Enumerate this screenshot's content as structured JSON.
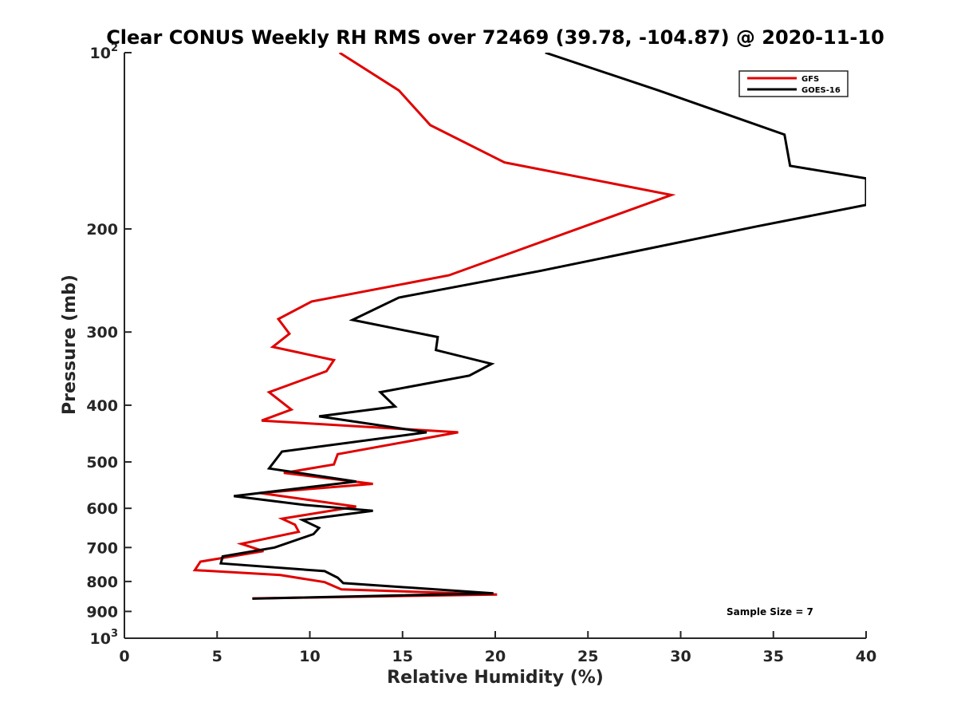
{
  "chart_data": {
    "type": "line",
    "title": "Clear CONUS Weekly RH RMS over 72469 (39.78, -104.87) @ 2020-11-10",
    "xlabel": "Relative Humidity (%)",
    "ylabel": "Pressure (mb)",
    "xlim": [
      0,
      40
    ],
    "ylim": [
      100,
      1000
    ],
    "yscale": "log",
    "y_reversed": true,
    "grid": false,
    "legend_position": "top-right",
    "x_ticks": [
      0,
      5,
      10,
      15,
      20,
      25,
      30,
      35,
      40
    ],
    "y_ticks": [
      {
        "value": 100,
        "base": "10",
        "exp": "2"
      },
      {
        "value": 200,
        "label": "200"
      },
      {
        "value": 300,
        "label": "300"
      },
      {
        "value": 400,
        "label": "400"
      },
      {
        "value": 500,
        "label": "500"
      },
      {
        "value": 600,
        "label": "600"
      },
      {
        "value": 700,
        "label": "700"
      },
      {
        "value": 800,
        "label": "800"
      },
      {
        "value": 900,
        "label": "900"
      },
      {
        "value": 1000,
        "base": "10",
        "exp": "3"
      }
    ],
    "series": [
      {
        "name": "GFS",
        "color": "#e00000",
        "points": [
          [
            11.6,
            100
          ],
          [
            14.8,
            116
          ],
          [
            16.5,
            133
          ],
          [
            20.5,
            154
          ],
          [
            29.5,
            175
          ],
          [
            17.5,
            240
          ],
          [
            10.1,
            266
          ],
          [
            8.3,
            285
          ],
          [
            8.9,
            302
          ],
          [
            8.0,
            318
          ],
          [
            11.3,
            335
          ],
          [
            10.9,
            350
          ],
          [
            7.8,
            380
          ],
          [
            9.0,
            407
          ],
          [
            7.4,
            425
          ],
          [
            18.0,
            445
          ],
          [
            11.5,
            485
          ],
          [
            11.3,
            505
          ],
          [
            8.6,
            522
          ],
          [
            13.4,
            545
          ],
          [
            7.3,
            565
          ],
          [
            12.5,
            596
          ],
          [
            8.5,
            625
          ],
          [
            9.2,
            640
          ],
          [
            9.4,
            658
          ],
          [
            6.3,
            690
          ],
          [
            7.5,
            710
          ],
          [
            4.1,
            740
          ],
          [
            3.8,
            765
          ],
          [
            8.4,
            780
          ],
          [
            10.8,
            802
          ],
          [
            11.7,
            825
          ],
          [
            20.1,
            842
          ],
          [
            6.9,
            855
          ]
        ]
      },
      {
        "name": "GOES-16",
        "color": "#000000",
        "points": [
          [
            22.7,
            100
          ],
          [
            28.8,
            116
          ],
          [
            35.6,
            138
          ],
          [
            35.9,
            156
          ],
          [
            40.0,
            164
          ],
          [
            40.0,
            182
          ],
          [
            34.1,
            198
          ],
          [
            28.3,
            216
          ],
          [
            22.4,
            236
          ],
          [
            14.8,
            262
          ],
          [
            12.3,
            286
          ],
          [
            16.9,
            306
          ],
          [
            16.8,
            322
          ],
          [
            19.8,
            340
          ],
          [
            18.6,
            356
          ],
          [
            13.8,
            380
          ],
          [
            14.6,
            402
          ],
          [
            10.5,
            418
          ],
          [
            16.3,
            445
          ],
          [
            8.5,
            480
          ],
          [
            7.8,
            513
          ],
          [
            12.5,
            540
          ],
          [
            5.9,
            572
          ],
          [
            9.7,
            592
          ],
          [
            13.4,
            606
          ],
          [
            9.6,
            628
          ],
          [
            10.5,
            648
          ],
          [
            10.2,
            664
          ],
          [
            8.1,
            700
          ],
          [
            5.3,
            725
          ],
          [
            5.2,
            745
          ],
          [
            10.8,
            768
          ],
          [
            11.5,
            788
          ],
          [
            11.8,
            805
          ],
          [
            19.9,
            838
          ],
          [
            6.9,
            856
          ]
        ]
      }
    ],
    "annotations": [
      {
        "text": "Sample Size = 7"
      }
    ]
  }
}
